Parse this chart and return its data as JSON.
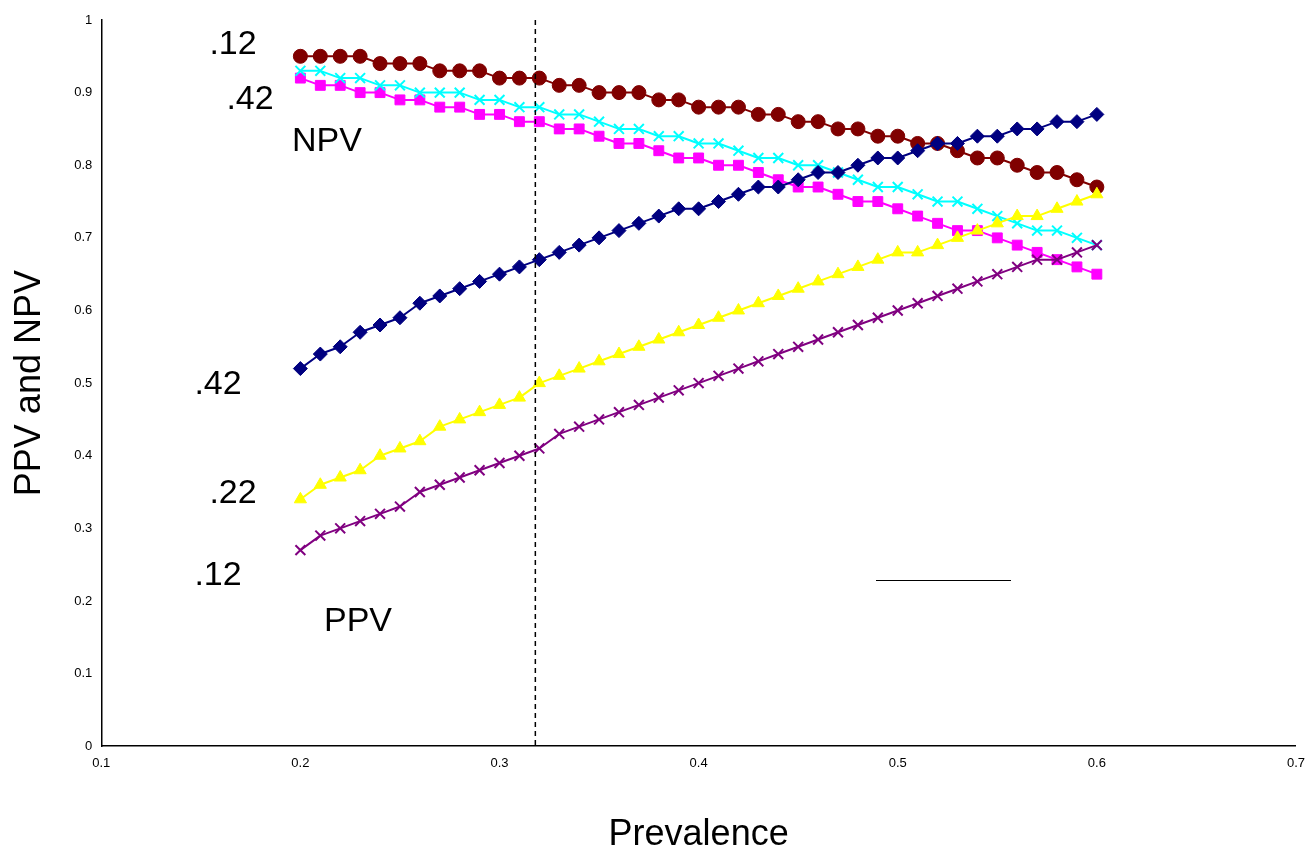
{
  "chart_data": {
    "type": "line",
    "xlabel": "Prevalence",
    "ylabel": "PPV and NPV",
    "x": [
      0.2,
      0.21,
      0.22,
      0.23,
      0.24,
      0.25,
      0.26,
      0.27,
      0.28,
      0.29,
      0.3,
      0.31,
      0.32,
      0.33,
      0.34,
      0.35,
      0.36,
      0.37,
      0.38,
      0.39,
      0.4,
      0.41,
      0.42,
      0.43,
      0.44,
      0.45,
      0.46,
      0.47,
      0.48,
      0.49,
      0.5,
      0.51,
      0.52,
      0.53,
      0.54,
      0.55,
      0.56,
      0.57,
      0.58,
      0.59,
      0.6
    ],
    "series": [
      {
        "color": "#000080",
        "marker": "diamond",
        "values": [
          0.52,
          0.54,
          0.55,
          0.57,
          0.58,
          0.59,
          0.61,
          0.62,
          0.63,
          0.64,
          0.65,
          0.66,
          0.67,
          0.68,
          0.69,
          0.7,
          0.71,
          0.72,
          0.73,
          0.74,
          0.74,
          0.75,
          0.76,
          0.77,
          0.77,
          0.78,
          0.79,
          0.79,
          0.8,
          0.81,
          0.81,
          0.82,
          0.83,
          0.83,
          0.84,
          0.84,
          0.85,
          0.85,
          0.86,
          0.86,
          0.87
        ]
      },
      {
        "color": "#ffff00",
        "marker": "triangle",
        "values": [
          0.34,
          0.36,
          0.37,
          0.38,
          0.4,
          0.41,
          0.42,
          0.44,
          0.45,
          0.46,
          0.47,
          0.48,
          0.5,
          0.51,
          0.52,
          0.53,
          0.54,
          0.55,
          0.56,
          0.57,
          0.58,
          0.59,
          0.6,
          0.61,
          0.62,
          0.63,
          0.64,
          0.65,
          0.66,
          0.67,
          0.68,
          0.68,
          0.69,
          0.7,
          0.71,
          0.72,
          0.73,
          0.73,
          0.74,
          0.75,
          0.76
        ]
      },
      {
        "color": "#800080",
        "marker": "cross",
        "values": [
          0.27,
          0.29,
          0.3,
          0.31,
          0.32,
          0.33,
          0.35,
          0.36,
          0.37,
          0.38,
          0.39,
          0.4,
          0.41,
          0.43,
          0.44,
          0.45,
          0.46,
          0.47,
          0.48,
          0.49,
          0.5,
          0.51,
          0.52,
          0.53,
          0.54,
          0.55,
          0.56,
          0.57,
          0.58,
          0.59,
          0.6,
          0.61,
          0.62,
          0.63,
          0.64,
          0.65,
          0.66,
          0.67,
          0.67,
          0.68,
          0.69
        ]
      },
      {
        "color": "#800000",
        "marker": "circle",
        "values": [
          0.95,
          0.95,
          0.95,
          0.95,
          0.94,
          0.94,
          0.94,
          0.93,
          0.93,
          0.93,
          0.92,
          0.92,
          0.92,
          0.91,
          0.91,
          0.9,
          0.9,
          0.9,
          0.89,
          0.89,
          0.88,
          0.88,
          0.88,
          0.87,
          0.87,
          0.86,
          0.86,
          0.85,
          0.85,
          0.84,
          0.84,
          0.83,
          0.83,
          0.82,
          0.81,
          0.81,
          0.8,
          0.79,
          0.79,
          0.78,
          0.77
        ]
      },
      {
        "color": "#00ffff",
        "marker": "cross",
        "values": [
          0.93,
          0.93,
          0.92,
          0.92,
          0.91,
          0.91,
          0.9,
          0.9,
          0.9,
          0.89,
          0.89,
          0.88,
          0.88,
          0.87,
          0.87,
          0.86,
          0.85,
          0.85,
          0.84,
          0.84,
          0.83,
          0.83,
          0.82,
          0.81,
          0.81,
          0.8,
          0.8,
          0.79,
          0.78,
          0.77,
          0.77,
          0.76,
          0.75,
          0.75,
          0.74,
          0.73,
          0.72,
          0.71,
          0.71,
          0.7,
          0.69
        ]
      },
      {
        "color": "#ff00ff",
        "marker": "square",
        "values": [
          0.92,
          0.91,
          0.91,
          0.9,
          0.9,
          0.89,
          0.89,
          0.88,
          0.88,
          0.87,
          0.87,
          0.86,
          0.86,
          0.85,
          0.85,
          0.84,
          0.83,
          0.83,
          0.82,
          0.81,
          0.81,
          0.8,
          0.8,
          0.79,
          0.78,
          0.77,
          0.77,
          0.76,
          0.75,
          0.75,
          0.74,
          0.73,
          0.72,
          0.71,
          0.71,
          0.7,
          0.69,
          0.68,
          0.67,
          0.66,
          0.65
        ]
      }
    ],
    "xlim": [
      0.1,
      0.7
    ],
    "xticks": [
      0.1,
      0.2,
      0.3,
      0.4,
      0.5,
      0.6,
      0.7
    ],
    "ylim": [
      0,
      1
    ],
    "yticks": [
      0,
      0.1,
      0.2,
      0.3,
      0.4,
      0.5,
      0.6,
      0.7,
      0.8,
      0.9,
      1
    ],
    "grid": false,
    "legend": false,
    "ref_lines": [
      {
        "axis": "x",
        "value": 0.318,
        "color": "#000000",
        "line_style": "dashed"
      }
    ],
    "annotations": [
      ".12",
      ".42",
      "NPV",
      ".42",
      ".22",
      ".12",
      "PPV"
    ]
  }
}
